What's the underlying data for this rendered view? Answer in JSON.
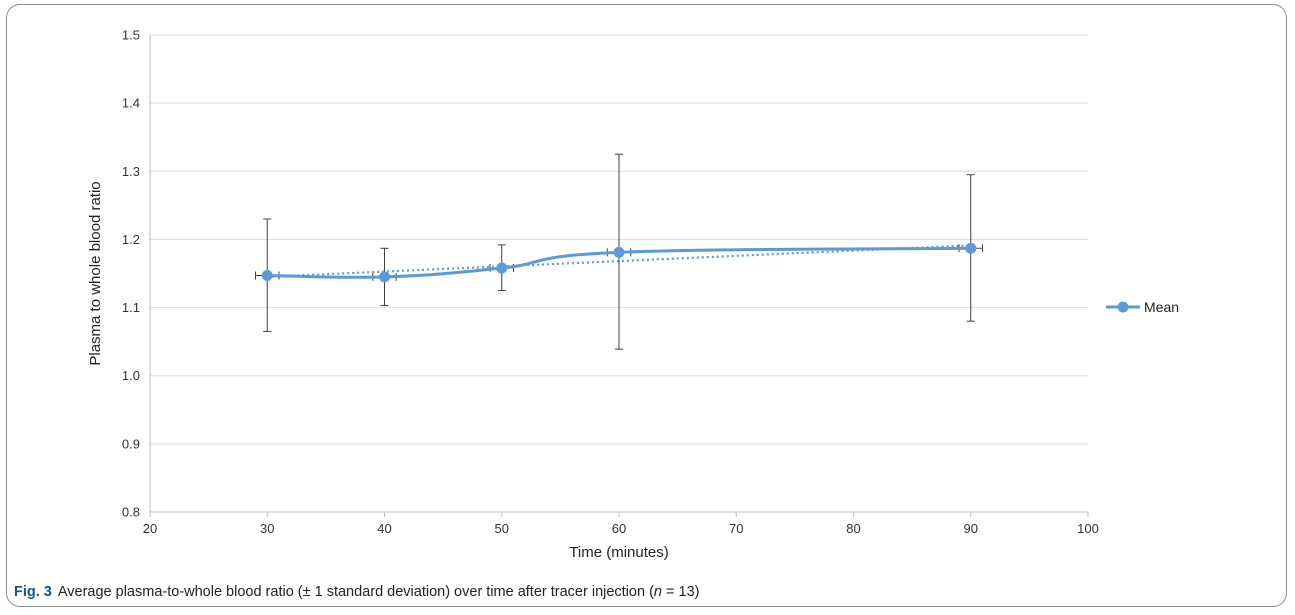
{
  "chart_data": {
    "type": "line",
    "xlabel": "Time (minutes)",
    "ylabel": "Plasma to whole blood ratio",
    "xlim": [
      20,
      100
    ],
    "ylim": [
      0.8,
      1.5
    ],
    "x_ticks": [
      "20",
      "30",
      "40",
      "50",
      "60",
      "70",
      "80",
      "90",
      "100"
    ],
    "y_ticks": [
      "0.8",
      "0.9",
      "1.0",
      "1.1",
      "1.2",
      "1.3",
      "1.4",
      "1.5"
    ],
    "grid": "horizontal",
    "legend_position": "right",
    "series": [
      {
        "name": "Mean",
        "color": "#5b9bd5",
        "x": [
          30,
          40,
          50,
          60,
          90
        ],
        "y": [
          1.147,
          1.145,
          1.158,
          1.181,
          1.187
        ],
        "y_err_low": [
          1.065,
          1.103,
          1.125,
          1.039,
          1.08
        ],
        "y_err_high": [
          1.23,
          1.187,
          1.192,
          1.325,
          1.295
        ],
        "x_err": 1,
        "trendline": "dotted"
      }
    ]
  },
  "caption": {
    "label": "Fig. 3",
    "text_before_n": "Average plasma-to-whole blood ratio (± 1 standard deviation) over time after tracer injection (",
    "n_symbol": "n",
    "text_after_n": " = 13)"
  }
}
